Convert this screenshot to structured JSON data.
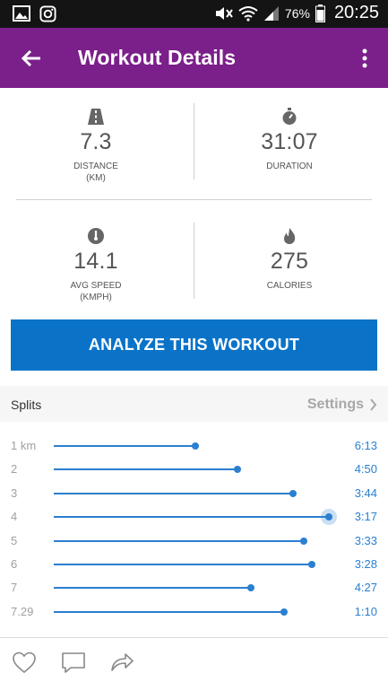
{
  "status_bar": {
    "battery": "76%",
    "time": "20:25",
    "icons": [
      "gallery-icon",
      "instagram-icon",
      "mute-icon",
      "wifi-icon",
      "signal-icon",
      "battery-icon"
    ]
  },
  "app_bar": {
    "title": "Workout Details",
    "icons": [
      "back-arrow-icon",
      "more-vert-icon"
    ],
    "color": "#7b1f8a"
  },
  "stats": {
    "distance": {
      "value": "7.3",
      "label": "DISTANCE",
      "unit": "(KM)",
      "icon": "road-icon"
    },
    "duration": {
      "value": "31:07",
      "label": "DURATION",
      "icon": "stopwatch-icon"
    },
    "avg_speed": {
      "value": "14.1",
      "label": "AVG SPEED",
      "unit": "(KMPH)",
      "icon": "speedometer-icon"
    },
    "calories": {
      "value": "275",
      "label": "CALORIES",
      "icon": "flame-icon"
    }
  },
  "analyze_button": {
    "label": "ANALYZE THIS WORKOUT",
    "color": "#0a73c8"
  },
  "splits": {
    "title": "Splits",
    "settings_label": "Settings",
    "accent": "#2a7fd0",
    "items": [
      {
        "km": "1 km",
        "time": "6:13",
        "fraction": 0.51
      },
      {
        "km": "2",
        "time": "4:50",
        "fraction": 0.66
      },
      {
        "km": "3",
        "time": "3:44",
        "fraction": 0.86
      },
      {
        "km": "4",
        "time": "3:17",
        "fraction": 0.99,
        "highlight": true
      },
      {
        "km": "5",
        "time": "3:33",
        "fraction": 0.9
      },
      {
        "km": "6",
        "time": "3:28",
        "fraction": 0.93
      },
      {
        "km": "7",
        "time": "4:27",
        "fraction": 0.71
      },
      {
        "km": "7.29",
        "time": "1:10",
        "fraction": 0.83
      }
    ]
  },
  "bottom_actions": [
    "heart-icon",
    "comment-icon",
    "share-icon"
  ]
}
